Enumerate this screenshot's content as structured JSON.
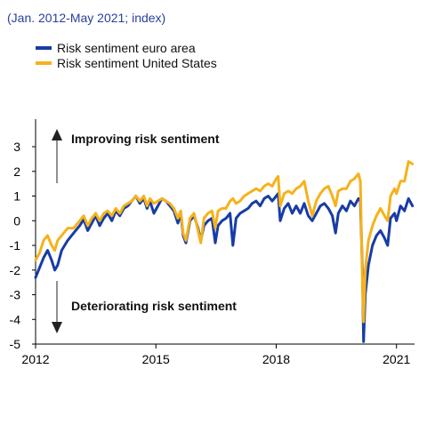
{
  "subtitle": "(Jan. 2012-May 2021; index)",
  "colors": {
    "euro": "#173ca6",
    "us": "#f6b21b",
    "axis": "#000000",
    "annotation": "#111111"
  },
  "annotations": {
    "improving": "Improving risk sentiment",
    "deteriorating": "Deteriorating risk sentiment"
  },
  "chart_data": {
    "type": "line",
    "title": "",
    "xlabel": "",
    "ylabel": "",
    "xlim": [
      2012.0,
      2021.45
    ],
    "ylim": [
      -5,
      3
    ],
    "yticks": [
      3,
      2,
      1,
      0,
      -1,
      -2,
      -3,
      -4,
      -5
    ],
    "xticks": [
      2012,
      2015,
      2018,
      2021
    ],
    "xtick_labels": [
      "2012",
      "2015",
      "2018",
      "2021"
    ],
    "grid": false,
    "legend_position": "top-left",
    "series": [
      {
        "name": "Risk sentiment euro area",
        "color": "#173ca6",
        "points": [
          [
            2012.0,
            -2.3
          ],
          [
            2012.1,
            -1.9
          ],
          [
            2012.2,
            -1.5
          ],
          [
            2012.3,
            -1.2
          ],
          [
            2012.4,
            -1.6
          ],
          [
            2012.48,
            -2.0
          ],
          [
            2012.55,
            -1.8
          ],
          [
            2012.65,
            -1.2
          ],
          [
            2012.8,
            -0.8
          ],
          [
            2012.95,
            -0.5
          ],
          [
            2013.1,
            -0.2
          ],
          [
            2013.2,
            0.05
          ],
          [
            2013.3,
            -0.4
          ],
          [
            2013.4,
            -0.1
          ],
          [
            2013.5,
            0.2
          ],
          [
            2013.6,
            -0.2
          ],
          [
            2013.7,
            0.1
          ],
          [
            2013.8,
            0.3
          ],
          [
            2013.9,
            0.0
          ],
          [
            2014.0,
            0.4
          ],
          [
            2014.1,
            0.2
          ],
          [
            2014.2,
            0.5
          ],
          [
            2014.3,
            0.6
          ],
          [
            2014.4,
            0.8
          ],
          [
            2014.5,
            1.0
          ],
          [
            2014.6,
            0.7
          ],
          [
            2014.7,
            0.9
          ],
          [
            2014.78,
            0.5
          ],
          [
            2014.85,
            0.8
          ],
          [
            2014.95,
            0.3
          ],
          [
            2015.05,
            0.6
          ],
          [
            2015.15,
            0.9
          ],
          [
            2015.25,
            0.8
          ],
          [
            2015.35,
            0.6
          ],
          [
            2015.45,
            0.4
          ],
          [
            2015.55,
            -0.1
          ],
          [
            2015.62,
            0.3
          ],
          [
            2015.68,
            -0.6
          ],
          [
            2015.75,
            -0.9
          ],
          [
            2015.85,
            0.0
          ],
          [
            2015.95,
            0.2
          ],
          [
            2016.05,
            -0.3
          ],
          [
            2016.12,
            -0.8
          ],
          [
            2016.2,
            -0.2
          ],
          [
            2016.3,
            0.0
          ],
          [
            2016.4,
            0.1
          ],
          [
            2016.48,
            -0.9
          ],
          [
            2016.55,
            -0.2
          ],
          [
            2016.65,
            0.0
          ],
          [
            2016.75,
            0.1
          ],
          [
            2016.85,
            0.3
          ],
          [
            2016.92,
            -1.0
          ],
          [
            2017.0,
            0.1
          ],
          [
            2017.1,
            0.3
          ],
          [
            2017.2,
            0.4
          ],
          [
            2017.3,
            0.5
          ],
          [
            2017.4,
            0.7
          ],
          [
            2017.5,
            0.8
          ],
          [
            2017.6,
            0.6
          ],
          [
            2017.7,
            0.9
          ],
          [
            2017.8,
            1.0
          ],
          [
            2017.9,
            0.8
          ],
          [
            2018.0,
            1.0
          ],
          [
            2018.05,
            1.1
          ],
          [
            2018.1,
            0.0
          ],
          [
            2018.2,
            0.5
          ],
          [
            2018.3,
            0.7
          ],
          [
            2018.4,
            0.3
          ],
          [
            2018.5,
            0.6
          ],
          [
            2018.6,
            0.3
          ],
          [
            2018.7,
            0.7
          ],
          [
            2018.8,
            0.2
          ],
          [
            2018.9,
            0.0
          ],
          [
            2019.0,
            0.3
          ],
          [
            2019.1,
            0.6
          ],
          [
            2019.2,
            0.7
          ],
          [
            2019.3,
            0.5
          ],
          [
            2019.4,
            0.2
          ],
          [
            2019.48,
            -0.5
          ],
          [
            2019.55,
            0.3
          ],
          [
            2019.65,
            0.6
          ],
          [
            2019.75,
            0.4
          ],
          [
            2019.85,
            0.8
          ],
          [
            2019.95,
            0.6
          ],
          [
            2020.05,
            0.9
          ],
          [
            2020.1,
            0.8
          ],
          [
            2020.15,
            -2.0
          ],
          [
            2020.18,
            -4.9
          ],
          [
            2020.22,
            -3.0
          ],
          [
            2020.3,
            -1.8
          ],
          [
            2020.4,
            -1.0
          ],
          [
            2020.5,
            -0.6
          ],
          [
            2020.6,
            -0.4
          ],
          [
            2020.7,
            -0.7
          ],
          [
            2020.78,
            -1.0
          ],
          [
            2020.85,
            0.1
          ],
          [
            2020.95,
            0.3
          ],
          [
            2021.0,
            0.0
          ],
          [
            2021.1,
            0.6
          ],
          [
            2021.2,
            0.4
          ],
          [
            2021.3,
            0.9
          ],
          [
            2021.4,
            0.6
          ]
        ]
      },
      {
        "name": "Risk sentiment United States",
        "color": "#f6b21b",
        "points": [
          [
            2012.0,
            -1.6
          ],
          [
            2012.1,
            -1.3
          ],
          [
            2012.2,
            -0.8
          ],
          [
            2012.3,
            -0.6
          ],
          [
            2012.4,
            -1.0
          ],
          [
            2012.48,
            -1.2
          ],
          [
            2012.55,
            -0.8
          ],
          [
            2012.65,
            -0.6
          ],
          [
            2012.8,
            -0.3
          ],
          [
            2012.95,
            -0.3
          ],
          [
            2013.1,
            0.0
          ],
          [
            2013.2,
            0.2
          ],
          [
            2013.3,
            -0.2
          ],
          [
            2013.4,
            0.1
          ],
          [
            2013.5,
            0.3
          ],
          [
            2013.6,
            0.0
          ],
          [
            2013.7,
            0.3
          ],
          [
            2013.8,
            0.4
          ],
          [
            2013.9,
            0.2
          ],
          [
            2014.0,
            0.5
          ],
          [
            2014.1,
            0.3
          ],
          [
            2014.2,
            0.6
          ],
          [
            2014.3,
            0.7
          ],
          [
            2014.4,
            0.8
          ],
          [
            2014.5,
            1.0
          ],
          [
            2014.6,
            0.8
          ],
          [
            2014.7,
            1.0
          ],
          [
            2014.78,
            0.6
          ],
          [
            2014.85,
            0.9
          ],
          [
            2014.95,
            0.7
          ],
          [
            2015.05,
            0.8
          ],
          [
            2015.15,
            0.9
          ],
          [
            2015.25,
            0.8
          ],
          [
            2015.35,
            0.7
          ],
          [
            2015.45,
            0.5
          ],
          [
            2015.55,
            0.1
          ],
          [
            2015.62,
            0.4
          ],
          [
            2015.68,
            -0.5
          ],
          [
            2015.75,
            -0.8
          ],
          [
            2015.85,
            0.1
          ],
          [
            2015.95,
            0.3
          ],
          [
            2016.05,
            -0.4
          ],
          [
            2016.12,
            -0.9
          ],
          [
            2016.2,
            0.1
          ],
          [
            2016.3,
            0.3
          ],
          [
            2016.4,
            0.4
          ],
          [
            2016.48,
            -0.3
          ],
          [
            2016.55,
            0.4
          ],
          [
            2016.65,
            0.5
          ],
          [
            2016.75,
            0.5
          ],
          [
            2016.85,
            0.8
          ],
          [
            2016.92,
            0.9
          ],
          [
            2017.0,
            0.7
          ],
          [
            2017.1,
            0.8
          ],
          [
            2017.2,
            1.0
          ],
          [
            2017.3,
            1.1
          ],
          [
            2017.4,
            1.2
          ],
          [
            2017.5,
            1.3
          ],
          [
            2017.6,
            1.2
          ],
          [
            2017.7,
            1.4
          ],
          [
            2017.8,
            1.5
          ],
          [
            2017.9,
            1.4
          ],
          [
            2018.0,
            1.7
          ],
          [
            2018.05,
            1.8
          ],
          [
            2018.1,
            0.6
          ],
          [
            2018.2,
            1.1
          ],
          [
            2018.3,
            1.2
          ],
          [
            2018.4,
            1.1
          ],
          [
            2018.5,
            1.3
          ],
          [
            2018.6,
            1.4
          ],
          [
            2018.7,
            1.6
          ],
          [
            2018.8,
            0.8
          ],
          [
            2018.9,
            0.2
          ],
          [
            2019.0,
            0.8
          ],
          [
            2019.1,
            1.1
          ],
          [
            2019.2,
            1.3
          ],
          [
            2019.3,
            1.4
          ],
          [
            2019.4,
            1.0
          ],
          [
            2019.48,
            0.6
          ],
          [
            2019.55,
            1.2
          ],
          [
            2019.65,
            1.3
          ],
          [
            2019.75,
            1.3
          ],
          [
            2019.85,
            1.6
          ],
          [
            2019.95,
            1.7
          ],
          [
            2020.05,
            1.9
          ],
          [
            2020.1,
            1.6
          ],
          [
            2020.15,
            -2.5
          ],
          [
            2020.18,
            -4.1
          ],
          [
            2020.22,
            -2.0
          ],
          [
            2020.3,
            -0.8
          ],
          [
            2020.4,
            -0.2
          ],
          [
            2020.5,
            0.2
          ],
          [
            2020.6,
            0.5
          ],
          [
            2020.7,
            0.2
          ],
          [
            2020.78,
            0.0
          ],
          [
            2020.85,
            1.0
          ],
          [
            2020.95,
            1.3
          ],
          [
            2021.0,
            1.1
          ],
          [
            2021.1,
            1.6
          ],
          [
            2021.2,
            1.6
          ],
          [
            2021.3,
            2.4
          ],
          [
            2021.4,
            2.3
          ]
        ]
      }
    ]
  }
}
